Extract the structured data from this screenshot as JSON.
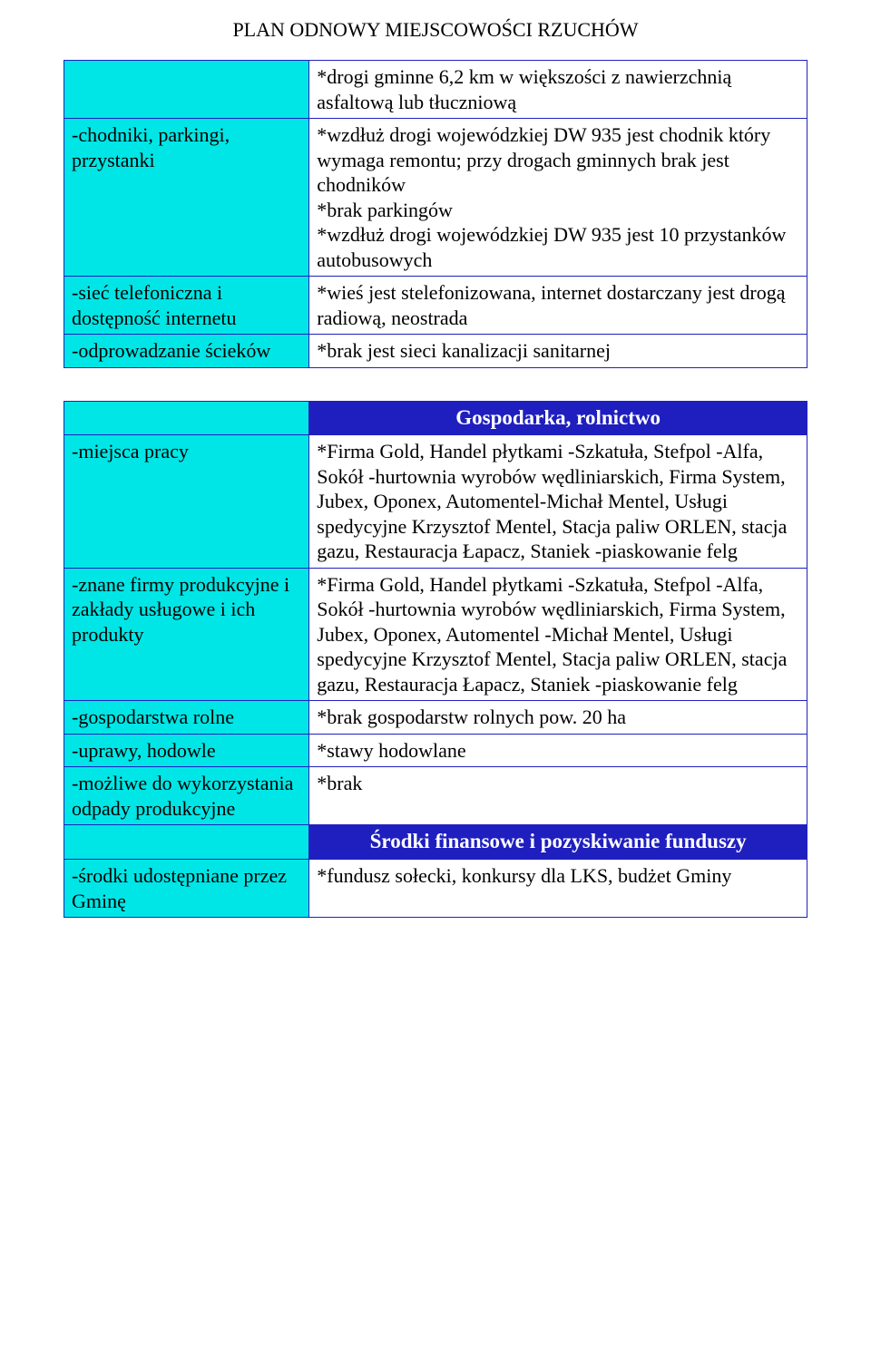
{
  "page": {
    "title": "PLAN ODNOWY MIEJSCOWOŚCI RZUCHÓW"
  },
  "colors": {
    "label_bg": "#00e6e6",
    "header_bg": "#1f1fbf",
    "border": "#2020c0",
    "text": "#000000",
    "header_text": "#ffffff"
  },
  "table1": {
    "rows": [
      {
        "label": "",
        "value": "*drogi gminne 6,2 km w większości z nawierzchnią asfaltową lub tłuczniową"
      },
      {
        "label": "-chodniki, parkingi, przystanki",
        "value": "*wzdłuż drogi wojewódzkiej DW 935 jest chodnik który wymaga remontu; przy drogach gminnych brak jest chodników\n*brak parkingów\n*wzdłuż drogi wojewódzkiej DW 935 jest 10 przystanków autobusowych"
      },
      {
        "label": "-sieć telefoniczna i dostępność internetu",
        "value": "*wieś jest stelefonizowana, internet dostarczany jest drogą radiową, neostrada"
      },
      {
        "label": "-odprowadzanie ścieków",
        "value": "*brak jest sieci kanalizacji sanitarnej"
      }
    ]
  },
  "table2": {
    "header1": "Gospodarka, rolnictwo",
    "header2": "Środki finansowe i pozyskiwanie funduszy",
    "section1": [
      {
        "label": "-miejsca pracy",
        "value": "*Firma Gold, Handel płytkami -Szkatuła, Stefpol -Alfa, Sokół -hurtownia wyrobów wędliniarskich, Firma System, Jubex, Oponex, Automentel-Michał Mentel, Usługi spedycyjne Krzysztof Mentel, Stacja paliw ORLEN, stacja gazu, Restauracja Łapacz, Staniek -piaskowanie felg"
      },
      {
        "label": "-znane firmy produkcyjne i zakłady usługowe i ich produkty",
        "value": "*Firma Gold, Handel płytkami -Szkatuła, Stefpol -Alfa, Sokół -hurtownia wyrobów wędliniarskich, Firma System, Jubex, Oponex, Automentel -Michał Mentel, Usługi spedycyjne Krzysztof Mentel, Stacja paliw ORLEN, stacja gazu, Restauracja Łapacz, Staniek -piaskowanie felg"
      },
      {
        "label": "-gospodarstwa rolne",
        "value": "*brak gospodarstw rolnych pow. 20 ha"
      },
      {
        "label": "-uprawy, hodowle",
        "value": "*stawy hodowlane"
      },
      {
        "label": "-możliwe do wykorzystania odpady produkcyjne",
        "value": "*brak"
      }
    ],
    "section2": [
      {
        "label": "-środki udostępniane przez Gminę",
        "value": "*fundusz sołecki, konkursy dla LKS, budżet Gminy"
      }
    ]
  }
}
